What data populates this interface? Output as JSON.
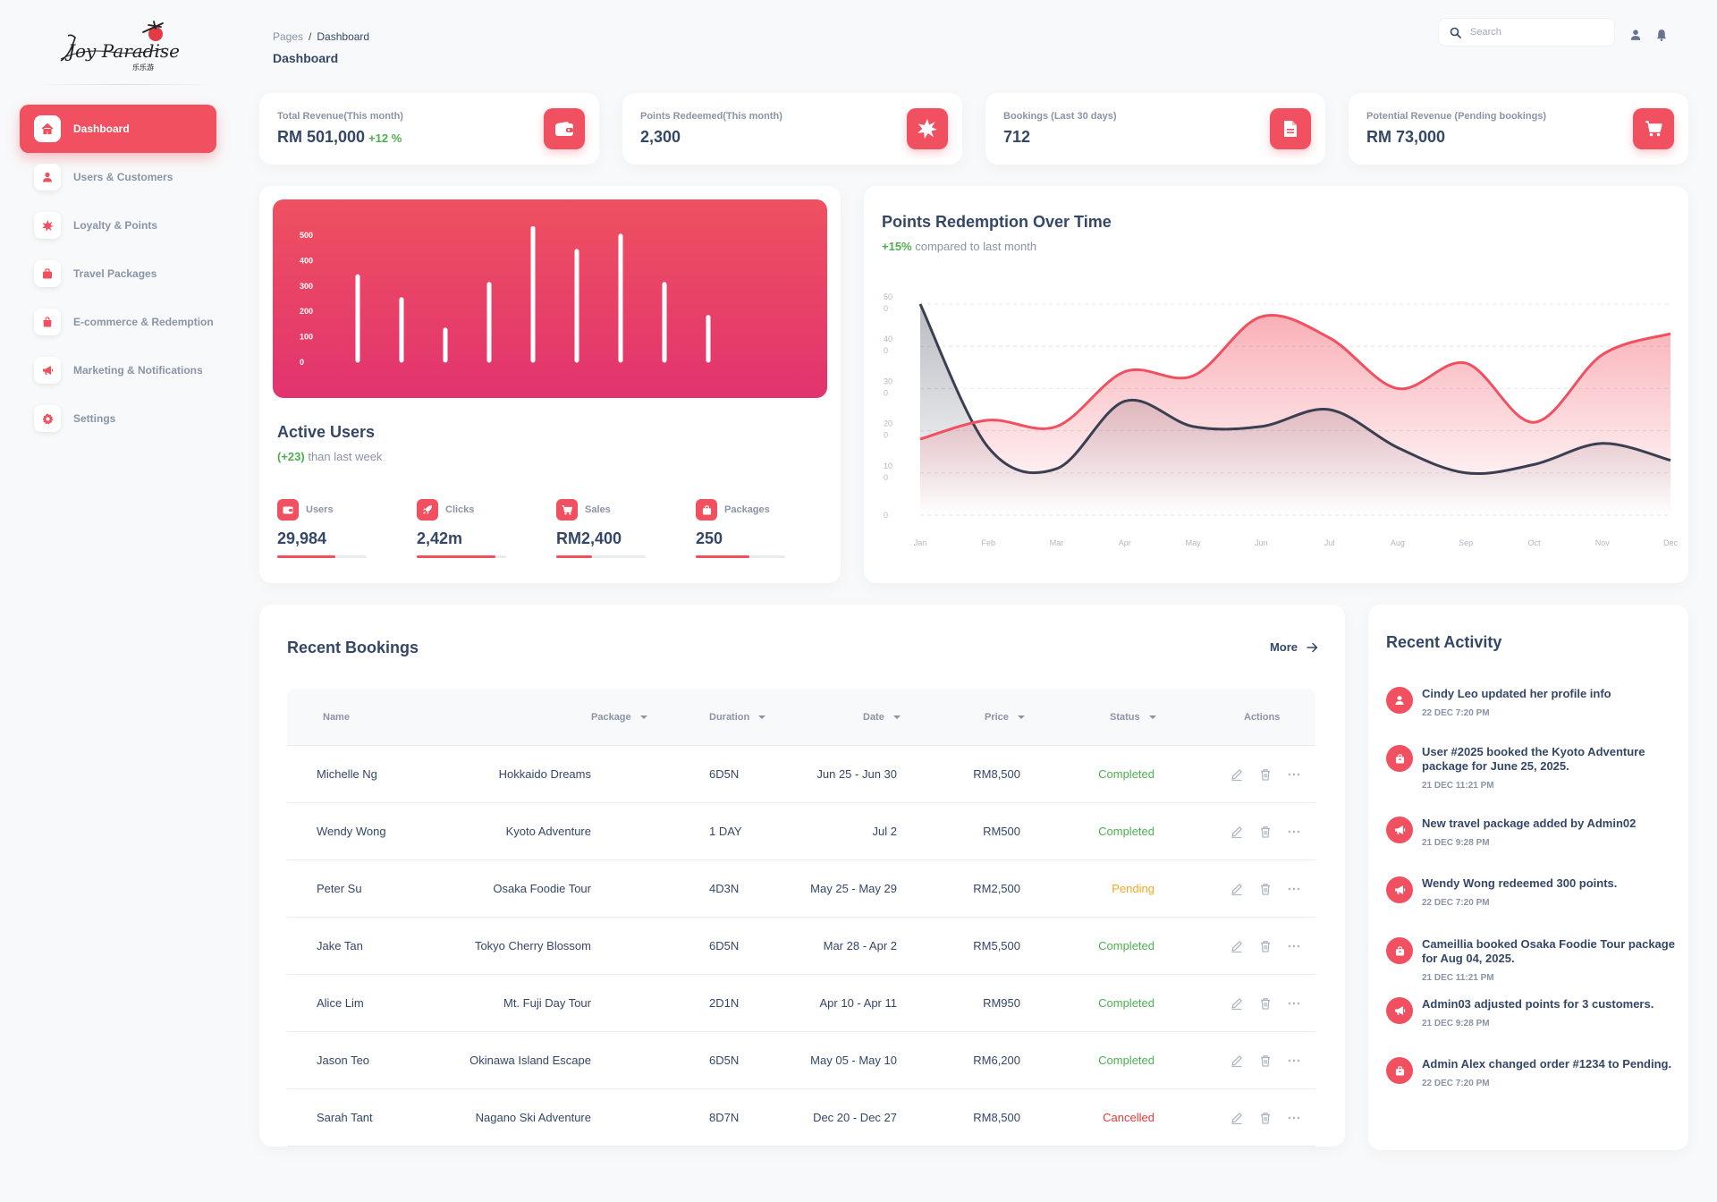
{
  "brand": {
    "logo_text": "Joy Paradise",
    "logo_sub": "乐乐游"
  },
  "sidebar": {
    "items": [
      {
        "label": "Dashboard",
        "icon": "home-icon"
      },
      {
        "label": "Users & Customers",
        "icon": "user-icon"
      },
      {
        "label": "Loyalty & Points",
        "icon": "burst-icon"
      },
      {
        "label": "Travel Packages",
        "icon": "bag-icon"
      },
      {
        "label": "E-commerce & Redemption",
        "icon": "shopping-bag-icon"
      },
      {
        "label": "Marketing & Notifications",
        "icon": "megaphone-icon"
      },
      {
        "label": "Settings",
        "icon": "gear-icon"
      }
    ]
  },
  "header": {
    "breadcrumb_root": "Pages",
    "breadcrumb_sep": "/",
    "breadcrumb_current": "Dashboard",
    "title": "Dashboard",
    "search_placeholder": "Search"
  },
  "stats": [
    {
      "label": "Total Revenue(This month)",
      "value": "RM 501,000",
      "delta": "+12 %",
      "icon": "wallet-icon"
    },
    {
      "label": "Points Redeemed(This month)",
      "value": "2,300",
      "delta": "",
      "icon": "burst-icon"
    },
    {
      "label": "Bookings (Last 30 days)",
      "value": "712",
      "delta": "",
      "icon": "document-icon"
    },
    {
      "label": "Potential Revenue (Pending bookings)",
      "value": "RM 73,000",
      "delta": "",
      "icon": "cart-icon"
    }
  ],
  "active_users": {
    "title": "Active Users",
    "sub_highlight": "(+23)",
    "sub_rest": " than last week",
    "metrics": [
      {
        "label": "Users",
        "value": "29,984",
        "progress": 0.65,
        "icon": "wallet-icon"
      },
      {
        "label": "Clicks",
        "value": "2,42m",
        "progress": 0.88,
        "icon": "rocket-icon"
      },
      {
        "label": "Sales",
        "value": "RM2,400",
        "progress": 0.4,
        "icon": "cart-icon"
      },
      {
        "label": "Packages",
        "value": "250",
        "progress": 0.6,
        "icon": "bag-icon"
      }
    ]
  },
  "points_chart": {
    "title": "Points Redemption Over Time",
    "sub_highlight": "+15%",
    "sub_rest": " compared to last month"
  },
  "chart_data": [
    {
      "type": "bar",
      "yticks": [
        "500",
        "400",
        "300",
        "200",
        "100",
        "0"
      ],
      "ylim": [
        0,
        500
      ],
      "values": [
        330,
        240,
        120,
        300,
        520,
        430,
        490,
        300,
        170
      ],
      "colors": {
        "bar": "#ffffff",
        "background_top": "#ee5160",
        "background_bottom": "#e2336f"
      }
    },
    {
      "type": "area",
      "categories": [
        "Jan",
        "Feb",
        "Mar",
        "Apr",
        "May",
        "Jun",
        "Jul",
        "Aug",
        "Sep",
        "Oct",
        "Nov",
        "Dec"
      ],
      "yticks": [
        "50\n0",
        "40\n0",
        "30\n0",
        "20\n0",
        "10\n0",
        "0"
      ],
      "ylim": [
        0,
        500
      ],
      "series": [
        {
          "values": [
            180,
            225,
            210,
            340,
            330,
            470,
            420,
            300,
            360,
            220,
            380,
            430
          ],
          "color": "#f0505f"
        },
        {
          "values": [
            500,
            160,
            110,
            270,
            210,
            210,
            250,
            160,
            100,
            120,
            170,
            130
          ],
          "color": "#3a3f52"
        }
      ],
      "grid": true
    }
  ],
  "bookings": {
    "title": "Recent Bookings",
    "more_label": "More",
    "columns": [
      "Name",
      "Package",
      "Duration",
      "Date",
      "Price",
      "Status",
      "Actions"
    ],
    "rows": [
      {
        "name": "Michelle Ng",
        "package": "Hokkaido Dreams",
        "duration": "6D5N",
        "date": "Jun 25 - Jun 30",
        "price": "RM8,500",
        "status": "Completed"
      },
      {
        "name": "Wendy Wong",
        "package": "Kyoto Adventure",
        "duration": "1 DAY",
        "date": "Jul 2",
        "price": "RM500",
        "status": "Completed"
      },
      {
        "name": "Peter Su",
        "package": "Osaka Foodie Tour",
        "duration": "4D3N",
        "date": "May 25 - May 29",
        "price": "RM2,500",
        "status": "Pending"
      },
      {
        "name": "Jake Tan",
        "package": "Tokyo Cherry Blossom",
        "duration": "6D5N",
        "date": "Mar 28 - Apr 2",
        "price": "RM5,500",
        "status": "Completed"
      },
      {
        "name": "Alice Lim",
        "package": "Mt. Fuji Day Tour",
        "duration": "2D1N",
        "date": "Apr 10 - Apr 11",
        "price": "RM950",
        "status": "Completed"
      },
      {
        "name": "Jason Teo",
        "package": "Okinawa Island Escape",
        "duration": "6D5N",
        "date": "May 05 - May 10",
        "price": "RM6,200",
        "status": "Completed"
      },
      {
        "name": "Sarah Tant",
        "package": "Nagano Ski Adventure",
        "duration": "8D7N",
        "date": "Dec 20 - Dec 27",
        "price": "RM8,500",
        "status": "Cancelled"
      }
    ],
    "status_colors": {
      "Completed": "#4caf50",
      "Pending": "#f5a623",
      "Cancelled": "#e53935"
    }
  },
  "activity": {
    "title": "Recent Activity",
    "items": [
      {
        "text": "Cindy Leo updated her profile info",
        "time": "22 DEC 7:20 PM",
        "icon": "user-icon"
      },
      {
        "text": "User #2025 booked the Kyoto Adventure package for June 25, 2025.",
        "time": "21 DEC 11:21 PM",
        "icon": "bag-icon"
      },
      {
        "text": "New travel package added by Admin02",
        "time": "21 DEC 9:28 PM",
        "icon": "megaphone-icon"
      },
      {
        "text": "Wendy Wong redeemed 300 points.",
        "time": "22 DEC 7:20 PM",
        "icon": "megaphone-icon"
      },
      {
        "text": "Cameillia booked Osaka Foodie Tour package for Aug 04, 2025.",
        "time": "21 DEC 11:21 PM",
        "icon": "bag-icon"
      },
      {
        "text": "Admin03 adjusted  points for 3 customers.",
        "time": "21 DEC 9:28 PM",
        "icon": "megaphone-icon"
      },
      {
        "text": "Admin Alex changed order #1234 to Pending.",
        "time": "22 DEC 7:20 PM",
        "icon": "bag-icon"
      }
    ]
  },
  "colors": {
    "accent": "#f0505f",
    "text": "#344767",
    "muted": "#8a94a6",
    "positive": "#4caf50"
  }
}
